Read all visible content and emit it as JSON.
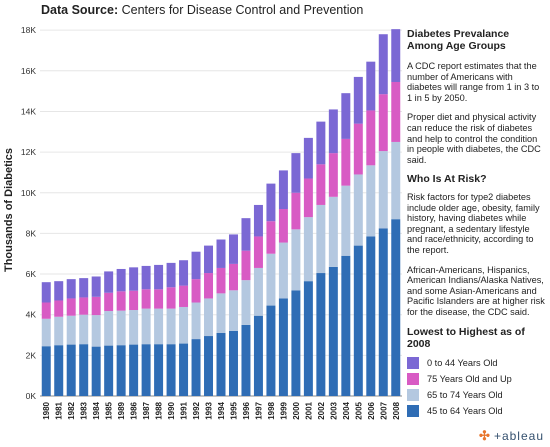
{
  "header": {
    "label": "Data Source:",
    "value": "Centers for Disease Control and Prevention"
  },
  "sidebar": {
    "title": "Diabetes Prevalance Among Age Groups",
    "p1": "A CDC report estimates that the number of Americans with diabetes will range from 1 in 3 to 1 in 5 by 2050.",
    "p2": "Proper diet and physical activity can reduce the risk of diabetes and help to control the condition in people with diabetes, the CDC said.",
    "risk_title": "Who Is At Risk?",
    "p3": "Risk factors for type2 diabetes include older age, obesity, family history, having diabetes while pregnant, a sedentary lifestyle and race/ethnicity, according to the report.",
    "p4": "African-Americans, Hispanics, American Indians/Alaska Natives, and some Asian-Americans and Pacific Islanders are at higher risk for the disease, the CDC said."
  },
  "legend": {
    "title": "Lowest to Highest as of 2008",
    "items": [
      {
        "label": "0 to 44 Years Old",
        "color": "#7b68d4"
      },
      {
        "label": "75 Years Old and Up",
        "color": "#d85bc4"
      },
      {
        "label": "65 to 74 Years Old",
        "color": "#b4c8e0"
      },
      {
        "label": "45 to 64 Years Old",
        "color": "#2f6db5"
      }
    ]
  },
  "logo": {
    "text": "+ableau"
  },
  "chart_data": {
    "type": "bar",
    "stacked": true,
    "ylabel": "Thousands of Diabetics",
    "ylim": [
      0,
      18500
    ],
    "yticks": [
      0,
      2000,
      4000,
      6000,
      8000,
      10000,
      12000,
      14000,
      16000,
      18000
    ],
    "ytick_labels": [
      "0K",
      "2K",
      "4K",
      "6K",
      "8K",
      "10K",
      "12K",
      "14K",
      "16K",
      "18K"
    ],
    "categories": [
      "1980",
      "1981",
      "1982",
      "1983",
      "1984",
      "1985",
      "1989",
      "1986",
      "1987",
      "1988",
      "1990",
      "1991",
      "1992",
      "1993",
      "1994",
      "1995",
      "1996",
      "1997",
      "1998",
      "1999",
      "2000",
      "2001",
      "2002",
      "2003",
      "2004",
      "2005",
      "2006",
      "2007",
      "2008"
    ],
    "series": [
      {
        "name": "45 to 64 Years Old",
        "color": "#2f6db5",
        "values": [
          2450,
          2500,
          2530,
          2550,
          2430,
          2480,
          2500,
          2530,
          2550,
          2550,
          2550,
          2580,
          2800,
          2950,
          3100,
          3200,
          3500,
          3950,
          4450,
          4800,
          5200,
          5650,
          6050,
          6350,
          6900,
          7400,
          7850,
          8250,
          8700
        ]
      },
      {
        "name": "65 to 74 Years Old",
        "color": "#b4c8e0",
        "values": [
          1350,
          1400,
          1420,
          1450,
          1550,
          1700,
          1700,
          1700,
          1750,
          1750,
          1750,
          1800,
          1800,
          1850,
          1950,
          2000,
          2200,
          2350,
          2550,
          2750,
          3000,
          3150,
          3350,
          3450,
          3450,
          3500,
          3500,
          3800,
          3800
        ]
      },
      {
        "name": "75 Years Old and Up",
        "color": "#d85bc4",
        "values": [
          800,
          800,
          850,
          850,
          900,
          900,
          950,
          950,
          950,
          950,
          1050,
          1050,
          1150,
          1250,
          1250,
          1300,
          1450,
          1550,
          1600,
          1650,
          1800,
          1900,
          2000,
          2150,
          2300,
          2500,
          2700,
          2800,
          2950
        ]
      },
      {
        "name": "0 to 44 Years Old",
        "color": "#7b68d4",
        "values": [
          1000,
          950,
          950,
          950,
          1000,
          1050,
          1100,
          1150,
          1150,
          1200,
          1200,
          1250,
          1350,
          1350,
          1400,
          1450,
          1600,
          1550,
          1850,
          1900,
          1950,
          2000,
          2100,
          2150,
          2250,
          2300,
          2400,
          2950,
          2600
        ]
      }
    ]
  }
}
